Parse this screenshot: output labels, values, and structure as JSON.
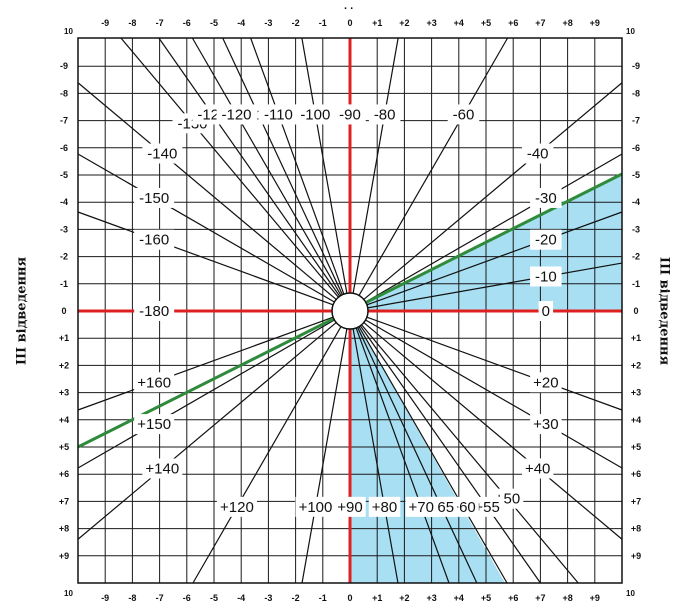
{
  "diagram": {
    "top_partial_label": ". .",
    "left_label": "III відведення",
    "right_label": "III відведення",
    "corner_labels": {
      "top_left": "10",
      "top_right": "10",
      "bottom_left": "10",
      "bottom_right": "10"
    },
    "x_ticks": [
      "-9",
      "-8",
      "-7",
      "-6",
      "-5",
      "-4",
      "-3",
      "-2",
      "-1",
      "0",
      "+1",
      "+2",
      "+3",
      "+4",
      "+5",
      "+6",
      "+7",
      "+8",
      "+9"
    ],
    "y_ticks": [
      "-9",
      "-8",
      "-7",
      "-6",
      "-5",
      "-4",
      "-3",
      "-2",
      "-1",
      "0",
      "+1",
      "+2",
      "+3",
      "+4",
      "+5",
      "+6",
      "+7",
      "+8",
      "+9"
    ],
    "angle_labels": [
      {
        "text": "-115",
        "angle": -115
      },
      {
        "text": "-110",
        "angle": -110
      },
      {
        "text": "-100",
        "angle": -100
      },
      {
        "text": "-90",
        "angle": -90
      },
      {
        "text": "-80",
        "angle": -80
      },
      {
        "text": "-60",
        "angle": -60
      },
      {
        "text": "-40",
        "angle": -40
      },
      {
        "text": "-30",
        "angle": -30
      },
      {
        "text": "-20",
        "angle": -20
      },
      {
        "text": "-10",
        "angle": -10
      },
      {
        "text": "0",
        "angle": 0
      },
      {
        "text": "+20",
        "angle": 20
      },
      {
        "text": "+30",
        "angle": 30
      },
      {
        "text": "+40",
        "angle": 40
      },
      {
        "text": "+50",
        "angle": 50
      },
      {
        "text": "+55",
        "angle": 55
      },
      {
        "text": "+60",
        "angle": 60
      },
      {
        "text": "+65",
        "angle": 65
      },
      {
        "text": "+70",
        "angle": 70
      },
      {
        "text": "+80",
        "angle": 80
      },
      {
        "text": "+90",
        "angle": 90
      },
      {
        "text": "+100",
        "angle": 100
      },
      {
        "text": "+120",
        "angle": 120
      },
      {
        "text": "+140",
        "angle": 140
      },
      {
        "text": "+150",
        "angle": 150
      },
      {
        "text": "+160",
        "angle": 160
      },
      {
        "text": "-180",
        "angle": 180
      },
      {
        "text": "-160",
        "angle": -160
      },
      {
        "text": "-150",
        "angle": -150
      },
      {
        "text": "-140",
        "angle": -140
      },
      {
        "text": "-130",
        "angle": -130
      },
      {
        "text": "-125",
        "angle": -125
      },
      {
        "text": "-120",
        "angle": -120
      }
    ],
    "colors": {
      "axis": "#e02020",
      "green_line": "#2e8b3a",
      "shade": "#a8dff2",
      "grid": "#1a1a1a",
      "ray": "#111111"
    }
  }
}
